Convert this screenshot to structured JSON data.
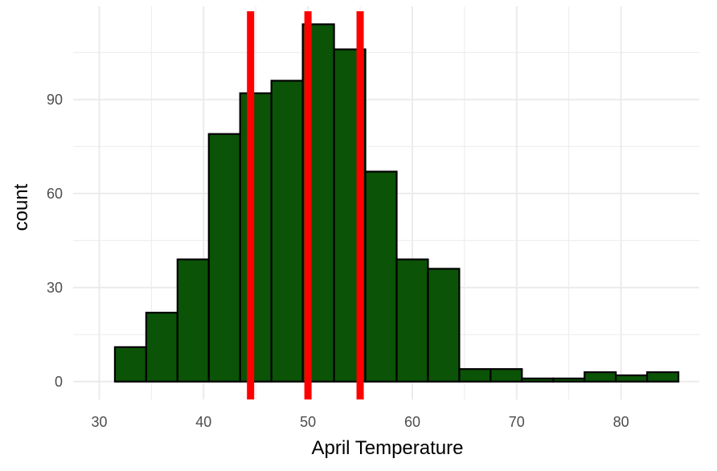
{
  "chart_data": {
    "type": "bar",
    "xlabel": "April Temperature",
    "ylabel": "count",
    "xlim": [
      27.5,
      87.5
    ],
    "ylim": [
      -5.7,
      119.7
    ],
    "x_ticks": [
      30,
      40,
      50,
      60,
      70,
      80
    ],
    "y_ticks": [
      0,
      30,
      60,
      90
    ],
    "grid": true,
    "bins": [
      {
        "start": 31.5,
        "end": 34.5,
        "count": 11
      },
      {
        "start": 34.5,
        "end": 37.5,
        "count": 22
      },
      {
        "start": 37.5,
        "end": 40.5,
        "count": 39
      },
      {
        "start": 40.5,
        "end": 43.5,
        "count": 79
      },
      {
        "start": 43.5,
        "end": 46.5,
        "count": 92
      },
      {
        "start": 46.5,
        "end": 49.5,
        "count": 96
      },
      {
        "start": 49.5,
        "end": 52.5,
        "count": 114
      },
      {
        "start": 52.5,
        "end": 55.5,
        "count": 106
      },
      {
        "start": 55.5,
        "end": 58.5,
        "count": 67
      },
      {
        "start": 58.5,
        "end": 61.5,
        "count": 39
      },
      {
        "start": 61.5,
        "end": 64.5,
        "count": 36
      },
      {
        "start": 64.5,
        "end": 67.5,
        "count": 4
      },
      {
        "start": 67.5,
        "end": 70.5,
        "count": 4
      },
      {
        "start": 70.5,
        "end": 73.5,
        "count": 1
      },
      {
        "start": 73.5,
        "end": 76.5,
        "count": 1
      },
      {
        "start": 76.5,
        "end": 79.5,
        "count": 3
      },
      {
        "start": 79.5,
        "end": 82.5,
        "count": 2
      },
      {
        "start": 82.5,
        "end": 85.5,
        "count": 3
      }
    ],
    "vertical_lines": [
      44.5,
      50.0,
      55.0
    ],
    "colors": {
      "bar_fill": "#0b5306",
      "bar_stroke": "#000000",
      "vline": "#ff0000",
      "grid": "#ebebeb"
    }
  }
}
